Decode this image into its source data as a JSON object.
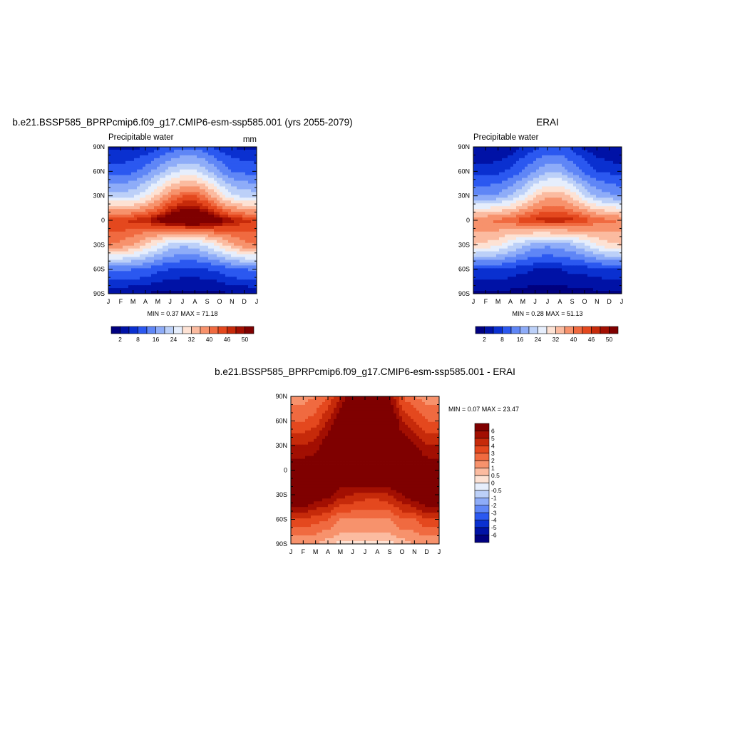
{
  "palette": [
    "#00007f",
    "#0012a6",
    "#0a30d0",
    "#2b58f0",
    "#5f86f6",
    "#8eacf8",
    "#bcd0f8",
    "#e6eefc",
    "#fde2d4",
    "#fbbba0",
    "#f7926c",
    "#f06a40",
    "#e4481e",
    "#c62a0a",
    "#a20f02",
    "#7f0000"
  ],
  "months": [
    "J",
    "F",
    "M",
    "A",
    "M",
    "J",
    "J",
    "A",
    "S",
    "O",
    "N",
    "D",
    "J"
  ],
  "lat_labels": [
    "90N",
    "60N",
    "30N",
    "0",
    "30S",
    "60S",
    "90S"
  ],
  "panels": [
    {
      "id": "model",
      "title": "b.e21.BSSP585_BPRPcmip6.f09_g17.CMIP6-esm-ssp585.001 (yrs 2055-2079)",
      "left_label": "Precipitable water",
      "right_label": "mm",
      "stats": "MIN =   0.37 MAX =  71.18",
      "colorbar_labels": [
        "2",
        "8",
        "16",
        "24",
        "32",
        "40",
        "46",
        "50"
      ]
    },
    {
      "id": "obs",
      "title": "ERAI",
      "left_label": "Precipitable water",
      "right_label": "",
      "stats": "MIN =   0.28 MAX =  51.13",
      "colorbar_labels": [
        "2",
        "8",
        "16",
        "24",
        "32",
        "40",
        "46",
        "50"
      ]
    },
    {
      "id": "diff",
      "title": "b.e21.BSSP585_BPRPcmip6.f09_g17.CMIP6-esm-ssp585.001 - ERAI",
      "stats": "MIN =   0.07 MAX =  23.47",
      "colorbar_labels": [
        "6",
        "5",
        "4",
        "3",
        "2",
        "1",
        "0.5",
        "0",
        "-0.5",
        "-1",
        "-2",
        "-3",
        "-4",
        "-5",
        "-6"
      ]
    }
  ],
  "chart_data": [
    {
      "type": "heatmap",
      "title": "b.e21.BSSP585_BPRPcmip6.f09_g17.CMIP6-esm-ssp585.001 (yrs 2055-2079)",
      "variable": "Precipitable water",
      "units": "mm",
      "x": [
        "J",
        "F",
        "M",
        "A",
        "M",
        "J",
        "J",
        "A",
        "S",
        "O",
        "N",
        "D",
        "J"
      ],
      "y": [
        90,
        60,
        30,
        0,
        -30,
        -60,
        -90
      ],
      "values": [
        [
          4,
          4,
          4,
          5,
          7,
          9,
          11,
          11,
          9,
          6,
          5,
          4,
          4
        ],
        [
          10,
          10,
          11,
          14,
          18,
          22,
          25,
          25,
          21,
          16,
          12,
          11,
          10
        ],
        [
          22,
          22,
          23,
          27,
          33,
          39,
          43,
          43,
          39,
          31,
          25,
          23,
          22
        ],
        [
          46,
          46,
          47,
          48,
          51,
          54,
          56,
          56,
          55,
          52,
          49,
          47,
          46
        ],
        [
          40,
          39,
          36,
          32,
          27,
          23,
          21,
          22,
          25,
          30,
          35,
          39,
          40
        ],
        [
          13,
          13,
          12,
          11,
          9,
          8,
          7,
          7,
          8,
          9,
          11,
          12,
          13
        ],
        [
          2,
          2,
          2,
          2,
          1,
          1,
          1,
          1,
          1,
          1,
          2,
          2,
          2
        ]
      ],
      "min": 0.37,
      "max": 71.18,
      "levels": [
        2,
        5,
        8,
        12,
        16,
        20,
        24,
        28,
        32,
        36,
        40,
        43,
        46,
        48,
        50
      ]
    },
    {
      "type": "heatmap",
      "title": "ERAI",
      "variable": "Precipitable water",
      "x": [
        "J",
        "F",
        "M",
        "A",
        "M",
        "J",
        "J",
        "A",
        "S",
        "O",
        "N",
        "D",
        "J"
      ],
      "y": [
        90,
        60,
        30,
        0,
        -30,
        -60,
        -90
      ],
      "values": [
        [
          2,
          2,
          2,
          3,
          5,
          7,
          9,
          9,
          7,
          4,
          3,
          2,
          2
        ],
        [
          6,
          6,
          7,
          9,
          12,
          16,
          19,
          19,
          15,
          11,
          8,
          7,
          6
        ],
        [
          16,
          16,
          17,
          20,
          25,
          31,
          35,
          35,
          31,
          24,
          19,
          17,
          16
        ],
        [
          40,
          40,
          41,
          42,
          45,
          47,
          48,
          48,
          47,
          45,
          42,
          41,
          40
        ],
        [
          32,
          31,
          29,
          25,
          21,
          18,
          17,
          18,
          20,
          24,
          28,
          31,
          32
        ],
        [
          8,
          8,
          8,
          7,
          6,
          5,
          5,
          5,
          6,
          6,
          7,
          8,
          8
        ],
        [
          1,
          1,
          1,
          1,
          0.5,
          0.5,
          0.5,
          0.5,
          0.5,
          1,
          1,
          1,
          1
        ]
      ],
      "min": 0.28,
      "max": 51.13,
      "levels": [
        2,
        5,
        8,
        12,
        16,
        20,
        24,
        28,
        32,
        36,
        40,
        43,
        46,
        48,
        50
      ]
    },
    {
      "type": "heatmap",
      "title": "b.e21.BSSP585_BPRPcmip6.f09_g17.CMIP6-esm-ssp585.001 - ERAI",
      "x": [
        "J",
        "F",
        "M",
        "A",
        "M",
        "J",
        "J",
        "A",
        "S",
        "O",
        "N",
        "D",
        "J"
      ],
      "y": [
        90,
        60,
        30,
        0,
        -30,
        -60,
        -90
      ],
      "values": [
        [
          1.5,
          1.5,
          2,
          3,
          5,
          7,
          8,
          8,
          6,
          3,
          2,
          1.5,
          1.5
        ],
        [
          3,
          3,
          3.5,
          5,
          7,
          8,
          9,
          9,
          8,
          5,
          4,
          3,
          3
        ],
        [
          5,
          5,
          5.5,
          7,
          8,
          9,
          10,
          10,
          9,
          7,
          6,
          5,
          5
        ],
        [
          7,
          7,
          7,
          7,
          7,
          8,
          9,
          9,
          9,
          8,
          8,
          7,
          7
        ],
        [
          8,
          8,
          7,
          6.5,
          5.5,
          5,
          4.5,
          4.5,
          5,
          6,
          7,
          8,
          8
        ],
        [
          4,
          4,
          3.5,
          3,
          2,
          2,
          2,
          2,
          2,
          3,
          3,
          4,
          4
        ],
        [
          1,
          1,
          1,
          0.5,
          0.3,
          0.2,
          0.2,
          0.2,
          0.3,
          0.5,
          1,
          1,
          1
        ]
      ],
      "min": 0.07,
      "max": 23.47,
      "levels": [
        -6,
        -5,
        -4,
        -3,
        -2,
        -1,
        -0.5,
        0,
        0.5,
        1,
        2,
        3,
        4,
        5,
        6
      ]
    }
  ]
}
